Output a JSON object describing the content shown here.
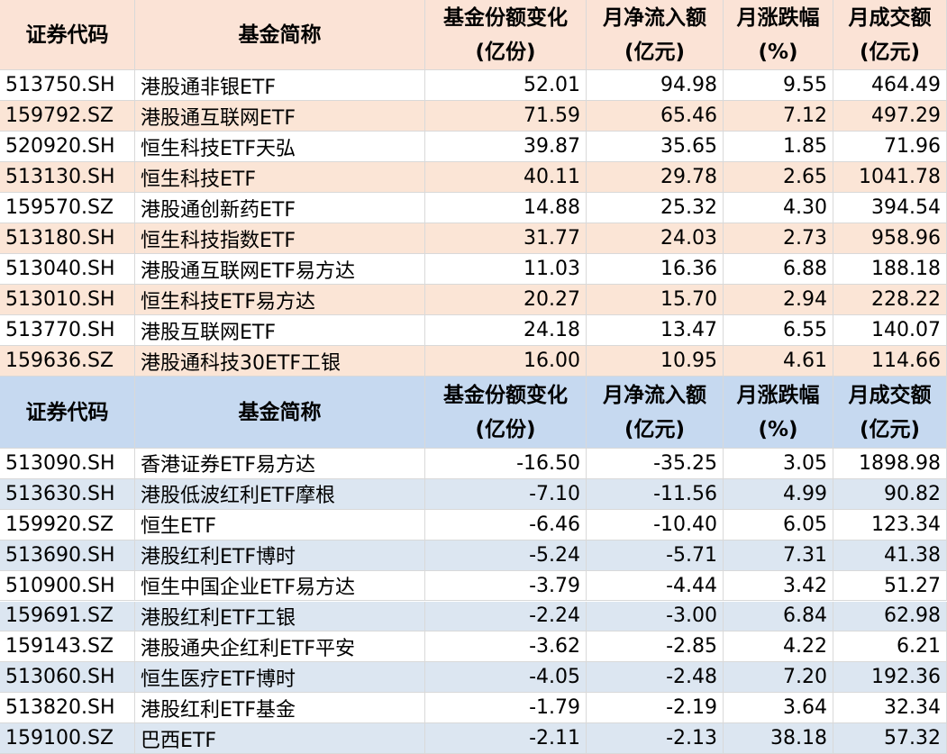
{
  "tables": [
    {
      "header": [
        [
          "证券代码"
        ],
        [
          "基金简称"
        ],
        [
          "基金份额变化",
          "(亿份)"
        ],
        [
          "月净流入额",
          "(亿元)"
        ],
        [
          "月涨跌幅",
          "(%)"
        ],
        [
          "月成交额",
          "(亿元)"
        ]
      ],
      "rows": [
        [
          "513750.SH",
          "港股通非银ETF",
          "52.01",
          "94.98",
          "9.55",
          "464.49"
        ],
        [
          "159792.SZ",
          "港股通互联网ETF",
          "71.59",
          "65.46",
          "7.12",
          "497.29"
        ],
        [
          "520920.SH",
          "恒生科技ETF天弘",
          "39.87",
          "35.65",
          "1.85",
          "71.96"
        ],
        [
          "513130.SH",
          "恒生科技ETF",
          "40.11",
          "29.78",
          "2.65",
          "1041.78"
        ],
        [
          "159570.SZ",
          "港股通创新药ETF",
          "14.88",
          "25.32",
          "4.30",
          "394.54"
        ],
        [
          "513180.SH",
          "恒生科技指数ETF",
          "31.77",
          "24.03",
          "2.73",
          "958.96"
        ],
        [
          "513040.SH",
          "港股通互联网ETF易方达",
          "11.03",
          "16.36",
          "6.88",
          "188.18"
        ],
        [
          "513010.SH",
          "恒生科技ETF易方达",
          "20.27",
          "15.70",
          "2.94",
          "228.22"
        ],
        [
          "513770.SH",
          "港股互联网ETF",
          "24.18",
          "13.47",
          "6.55",
          "140.07"
        ],
        [
          "159636.SZ",
          "港股通科技30ETF工银",
          "16.00",
          "10.95",
          "4.61",
          "114.66"
        ]
      ]
    },
    {
      "header": [
        [
          "证券代码"
        ],
        [
          "基金简称"
        ],
        [
          "基金份额变化",
          "(亿份)"
        ],
        [
          "月净流入额",
          "(亿元)"
        ],
        [
          "月涨跌幅",
          "(%)"
        ],
        [
          "月成交额",
          "(亿元)"
        ]
      ],
      "rows": [
        [
          "513090.SH",
          "香港证券ETF易方达",
          "-16.50",
          "-35.25",
          "3.05",
          "1898.98"
        ],
        [
          "513630.SH",
          "港股低波红利ETF摩根",
          "-7.10",
          "-11.56",
          "4.99",
          "90.82"
        ],
        [
          "159920.SZ",
          "恒生ETF",
          "-6.46",
          "-10.40",
          "6.05",
          "123.34"
        ],
        [
          "513690.SH",
          "港股红利ETF博时",
          "-5.24",
          "-5.71",
          "7.31",
          "41.38"
        ],
        [
          "510900.SH",
          "恒生中国企业ETF易方达",
          "-3.79",
          "-4.44",
          "3.42",
          "51.27"
        ],
        [
          "159691.SZ",
          "港股红利ETF工银",
          "-2.24",
          "-3.00",
          "6.84",
          "62.98"
        ],
        [
          "159143.SZ",
          "港股通央企红利ETF平安",
          "-3.62",
          "-2.85",
          "4.22",
          "6.21"
        ],
        [
          "513060.SH",
          "恒生医疗ETF博时",
          "-4.05",
          "-2.48",
          "7.20",
          "192.36"
        ],
        [
          "513820.SH",
          "港股红利ETF基金",
          "-1.79",
          "-2.19",
          "3.64",
          "32.34"
        ],
        [
          "159100.SZ",
          "巴西ETF",
          "-2.11",
          "-2.13",
          "38.18",
          "57.32"
        ]
      ]
    }
  ]
}
